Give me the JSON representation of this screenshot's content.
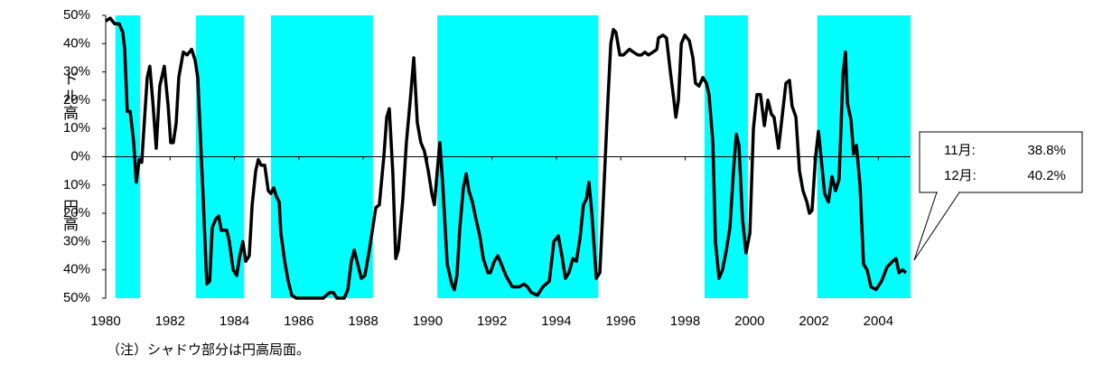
{
  "chart_data": {
    "type": "line",
    "y_side_labels": [
      "ドル高",
      "円高"
    ],
    "note": "（注）シャドウ部分は円高局面。",
    "annotation": [
      [
        "11月:",
        "38.8%"
      ],
      [
        "12月:",
        "40.2%"
      ]
    ],
    "xlim": [
      1980,
      2005
    ],
    "xticks": [
      1980,
      1982,
      1984,
      1986,
      1988,
      1990,
      1992,
      1994,
      1996,
      1998,
      2000,
      2002,
      2004
    ],
    "ylim": [
      -50,
      50
    ],
    "yticks": [
      {
        "value": 50,
        "label": "50%"
      },
      {
        "value": 40,
        "label": "40%"
      },
      {
        "value": 30,
        "label": "30%"
      },
      {
        "value": 20,
        "label": "20%"
      },
      {
        "value": 10,
        "label": "10%"
      },
      {
        "value": 0,
        "label": "0%"
      },
      {
        "value": -10,
        "label": "10%"
      },
      {
        "value": -20,
        "label": "20%"
      },
      {
        "value": -30,
        "label": "30%"
      },
      {
        "value": -40,
        "label": "40%"
      },
      {
        "value": -50,
        "label": "50%"
      }
    ],
    "shading": {
      "color": "#00ffff",
      "ranges": [
        [
          1980.3,
          1981.07
        ],
        [
          1982.8,
          1984.3
        ],
        [
          1985.13,
          1988.3
        ],
        [
          1990.3,
          1995.3
        ],
        [
          1998.6,
          1999.95
        ],
        [
          2002.1,
          2005
        ]
      ]
    },
    "x": [
      1980.0,
      1980.14,
      1980.28,
      1980.42,
      1980.53,
      1980.59,
      1980.67,
      1980.76,
      1980.87,
      1980.95,
      1981.04,
      1981.12,
      1981.21,
      1981.29,
      1981.37,
      1981.46,
      1981.57,
      1981.68,
      1981.82,
      1981.94,
      1982.02,
      1982.1,
      1982.19,
      1982.27,
      1982.41,
      1982.53,
      1982.67,
      1982.78,
      1982.86,
      1982.95,
      1983.03,
      1983.14,
      1983.23,
      1983.31,
      1983.42,
      1983.51,
      1983.59,
      1983.76,
      1983.84,
      1983.96,
      1984.07,
      1984.15,
      1984.26,
      1984.35,
      1984.46,
      1984.55,
      1984.66,
      1984.74,
      1984.83,
      1984.94,
      1985.05,
      1985.13,
      1985.22,
      1985.3,
      1985.39,
      1985.44,
      1985.56,
      1985.67,
      1985.78,
      1985.92,
      1986.26,
      1986.59,
      1986.76,
      1986.85,
      1986.96,
      1987.07,
      1987.18,
      1987.41,
      1987.52,
      1987.63,
      1987.72,
      1987.83,
      1987.94,
      1988.05,
      1988.19,
      1988.31,
      1988.39,
      1988.5,
      1988.64,
      1988.73,
      1988.81,
      1988.92,
      1989.01,
      1989.09,
      1989.23,
      1989.34,
      1989.46,
      1989.57,
      1989.68,
      1989.79,
      1989.9,
      1990.02,
      1990.13,
      1990.21,
      1990.3,
      1990.38,
      1990.47,
      1990.61,
      1990.75,
      1990.83,
      1990.91,
      1991.0,
      1991.11,
      1991.2,
      1991.28,
      1991.39,
      1991.5,
      1991.62,
      1991.73,
      1991.87,
      1991.95,
      1992.07,
      1992.18,
      1992.29,
      1992.43,
      1992.63,
      1992.85,
      1992.99,
      1993.1,
      1993.22,
      1993.41,
      1993.58,
      1993.78,
      1993.92,
      1994.06,
      1994.17,
      1994.28,
      1994.39,
      1994.51,
      1994.62,
      1994.73,
      1994.84,
      1994.93,
      1995.01,
      1995.1,
      1995.24,
      1995.35,
      1995.46,
      1995.6,
      1995.69,
      1995.77,
      1995.85,
      1995.97,
      1996.08,
      1996.27,
      1996.39,
      1996.53,
      1996.64,
      1996.75,
      1996.86,
      1997.0,
      1997.12,
      1997.17,
      1997.31,
      1997.42,
      1997.54,
      1997.65,
      1997.71,
      1997.79,
      1997.88,
      1997.99,
      1998.13,
      1998.24,
      1998.32,
      1998.43,
      1998.55,
      1998.66,
      1998.74,
      1998.86,
      1998.94,
      1999.05,
      1999.16,
      1999.28,
      1999.39,
      1999.5,
      1999.59,
      1999.67,
      1999.78,
      1999.89,
      2000.01,
      2000.12,
      2000.23,
      2000.34,
      2000.46,
      2000.57,
      2000.68,
      2000.76,
      2000.9,
      2001.02,
      2001.13,
      2001.24,
      2001.32,
      2001.44,
      2001.55,
      2001.66,
      2001.78,
      2001.86,
      2001.94,
      2002.05,
      2002.14,
      2002.22,
      2002.33,
      2002.45,
      2002.56,
      2002.67,
      2002.78,
      2002.9,
      2002.98,
      2003.04,
      2003.15,
      2003.23,
      2003.32,
      2003.43,
      2003.54,
      2003.65,
      2003.77,
      2003.93,
      2004.1,
      2004.27,
      2004.44,
      2004.55,
      2004.64,
      2004.75,
      2004.86
    ],
    "series": [
      {
        "color": "#000000",
        "values": [
          48,
          49,
          47,
          47,
          44,
          38,
          16,
          16,
          5,
          -9,
          -1,
          -2,
          14,
          28,
          32,
          20,
          3,
          25,
          32,
          18,
          5,
          5,
          12,
          28,
          37,
          36,
          38,
          34,
          28,
          5,
          -15,
          -45,
          -44,
          -25,
          -22,
          -21,
          -26,
          -26,
          -30,
          -40,
          -42,
          -36,
          -30,
          -37,
          -35,
          -17,
          -5,
          -1,
          -3,
          -3,
          -12,
          -13,
          -11,
          -14,
          -16,
          -27,
          -37,
          -44,
          -49,
          -50,
          -50,
          -50,
          -50,
          -49,
          -48,
          -48,
          -50,
          -50,
          -47,
          -37,
          -33,
          -38,
          -43,
          -42,
          -33,
          -24,
          -18,
          -17,
          0,
          14,
          17,
          -6,
          -36,
          -33,
          -15,
          5,
          20,
          35,
          12,
          5,
          2,
          -5,
          -13,
          -17,
          -5,
          5,
          -10,
          -38,
          -45,
          -47,
          -42,
          -25,
          -11,
          -6,
          -12,
          -16,
          -22,
          -28,
          -36,
          -41,
          -41,
          -37,
          -35,
          -38,
          -42,
          -46,
          -46,
          -45,
          -46,
          -48,
          -49,
          -46,
          -44,
          -30,
          -28,
          -35,
          -43,
          -41,
          -36,
          -37,
          -29,
          -17,
          -15,
          -9,
          -20,
          -43,
          -41,
          -15,
          20,
          40,
          45,
          44,
          36,
          36,
          38,
          37,
          36,
          36,
          37,
          36,
          37,
          38,
          42,
          43,
          42,
          30,
          20,
          14,
          20,
          40,
          43,
          41,
          35,
          26,
          25,
          28,
          26,
          22,
          5,
          -30,
          -43,
          -40,
          -33,
          -25,
          -5,
          8,
          4,
          -22,
          -34,
          -27,
          10,
          22,
          22,
          11,
          20,
          15,
          14,
          3,
          15,
          26,
          27,
          18,
          14,
          -5,
          -12,
          -16,
          -20,
          -19,
          0,
          9,
          0,
          -13,
          -16,
          -7,
          -12,
          -8,
          29,
          37,
          19,
          13,
          1,
          4,
          -10,
          -38,
          -40,
          -46,
          -47,
          -44,
          -39,
          -37,
          -36,
          -41,
          -40,
          -41
        ]
      }
    ]
  }
}
